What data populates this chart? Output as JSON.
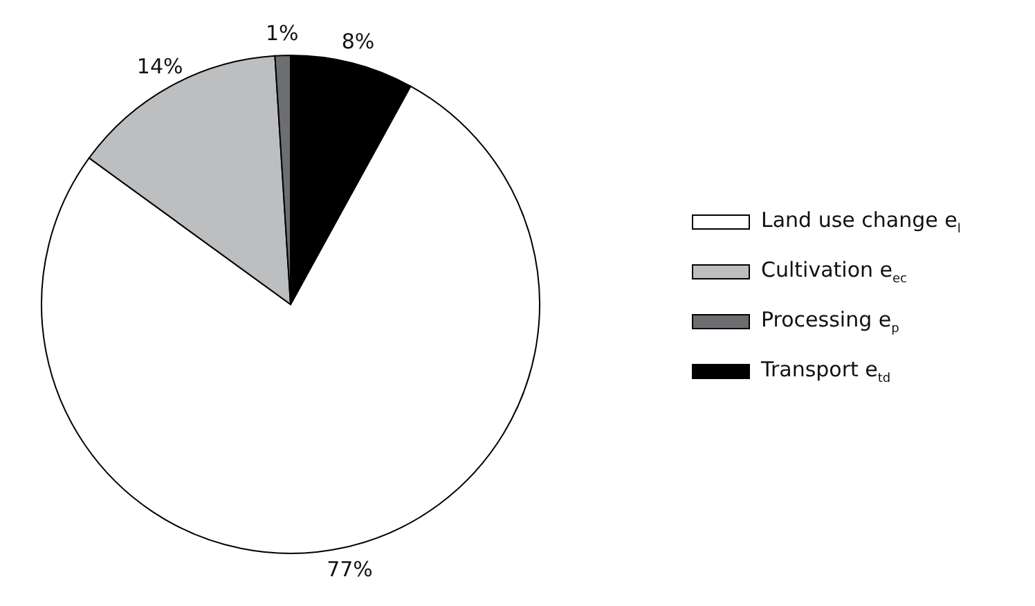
{
  "chart_data": {
    "type": "pie",
    "categories": [
      "Land use change e$_{l}$",
      "Cultivation e$_{ec}$",
      "Processing e$_{p}$",
      "Transport e$_{td}$"
    ],
    "values": [
      77,
      14,
      1,
      8
    ],
    "colors": [
      "#ffffff",
      "#bcbec0",
      "#6d6e71",
      "#000000"
    ],
    "value_labels": [
      "77%",
      "14%",
      "1%",
      "8%"
    ],
    "legend": "right"
  }
}
